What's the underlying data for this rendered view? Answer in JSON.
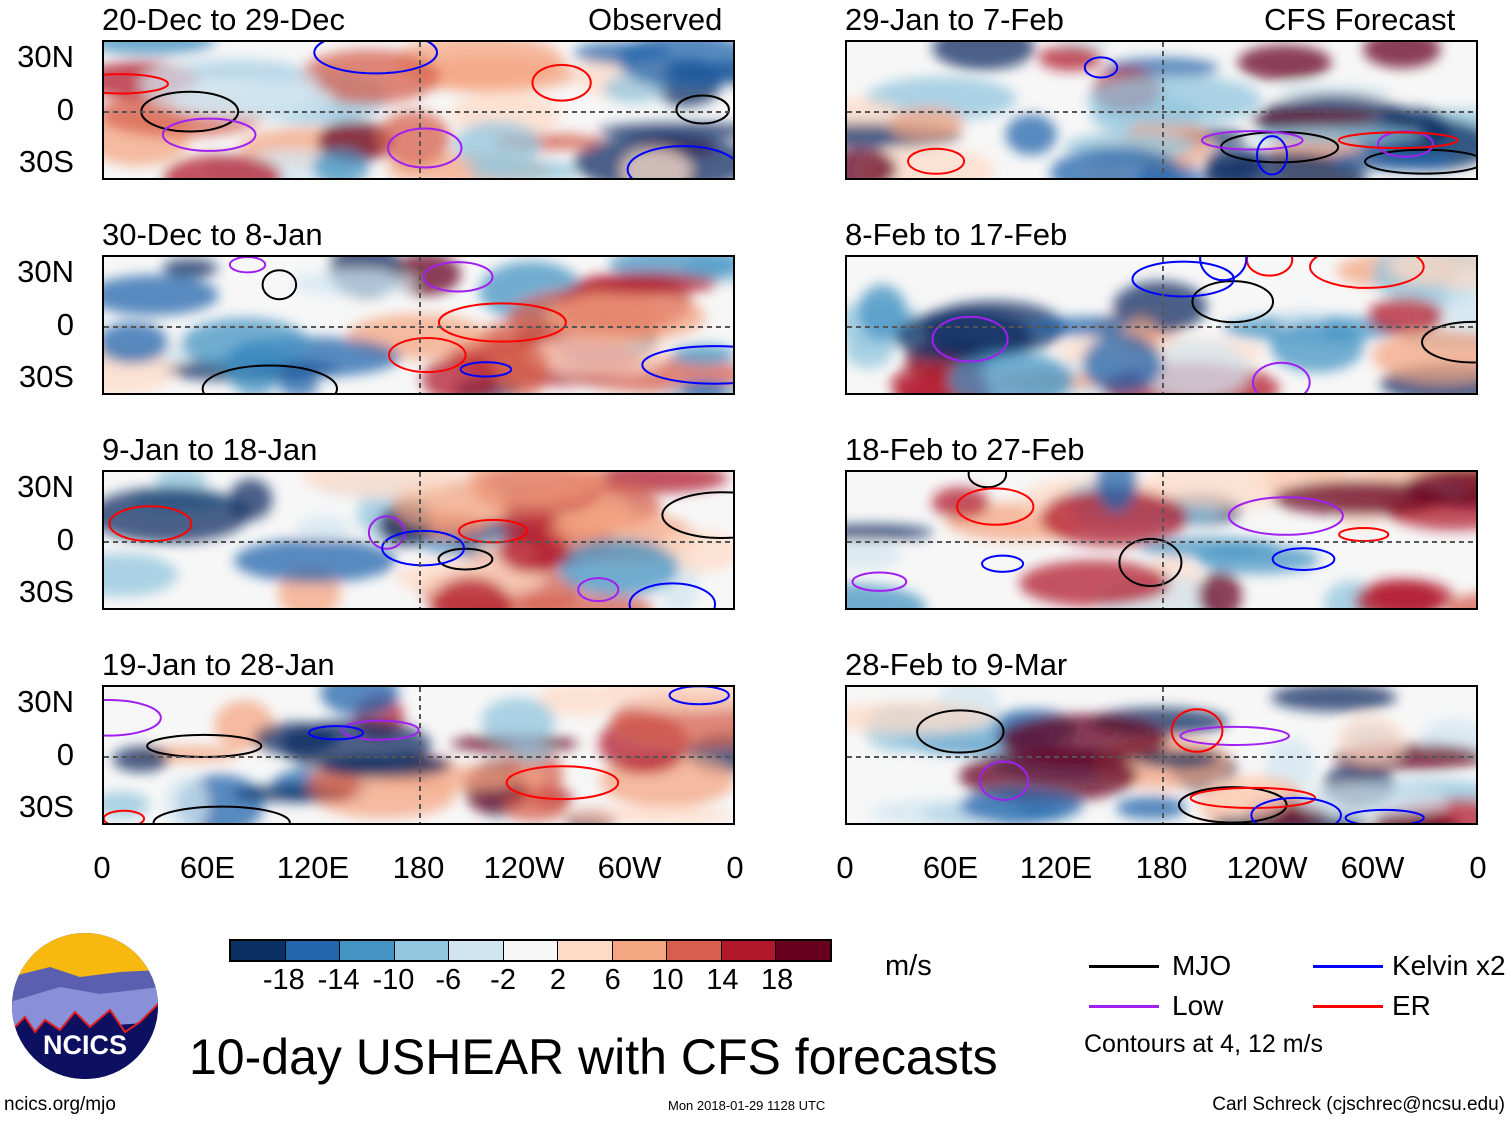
{
  "figure_title": "10-day USHEAR with CFS forecasts",
  "column_labels": {
    "left": "Observed",
    "right": "CFS Forecast"
  },
  "panels_left": [
    {
      "title": "20-Dec to 29-Dec"
    },
    {
      "title": "30-Dec to 8-Jan"
    },
    {
      "title": "9-Jan to 18-Jan"
    },
    {
      "title": "19-Jan to 28-Jan"
    }
  ],
  "panels_right": [
    {
      "title": "29-Jan to 7-Feb"
    },
    {
      "title": "8-Feb to 17-Feb"
    },
    {
      "title": "18-Feb to 27-Feb"
    },
    {
      "title": "28-Feb to 9-Mar"
    }
  ],
  "lat_labels": [
    "30N",
    "0",
    "30S"
  ],
  "lon_labels": [
    "0",
    "60E",
    "120E",
    "180",
    "120W",
    "60W",
    "0"
  ],
  "colorbar": {
    "colors": [
      "#0a2f63",
      "#2166ac",
      "#4393c3",
      "#92c5de",
      "#d1e5f0",
      "#f7f7f7",
      "#fddbc7",
      "#f4a582",
      "#d6604d",
      "#b2182b",
      "#67001f"
    ],
    "labels": [
      "-18",
      "-14",
      "-10",
      "-6",
      "-2",
      "2",
      "6",
      "10",
      "14",
      "18"
    ],
    "units": "m/s"
  },
  "legend": {
    "items": [
      {
        "label": "MJO",
        "color": "#000000"
      },
      {
        "label": "Kelvin x2",
        "color": "#0000ff"
      },
      {
        "label": "Low",
        "color": "#a020f0"
      },
      {
        "label": "ER",
        "color": "#ff0000"
      }
    ],
    "contours_note": "Contours at 4, 12 m/s"
  },
  "logo_text": "NCICS",
  "footer": {
    "url": "ncics.org/mjo",
    "timestamp": "Mon 2018-01-29 1128 UTC",
    "credit": "Carl Schreck (cjschrec@ncsu.edu)"
  }
}
